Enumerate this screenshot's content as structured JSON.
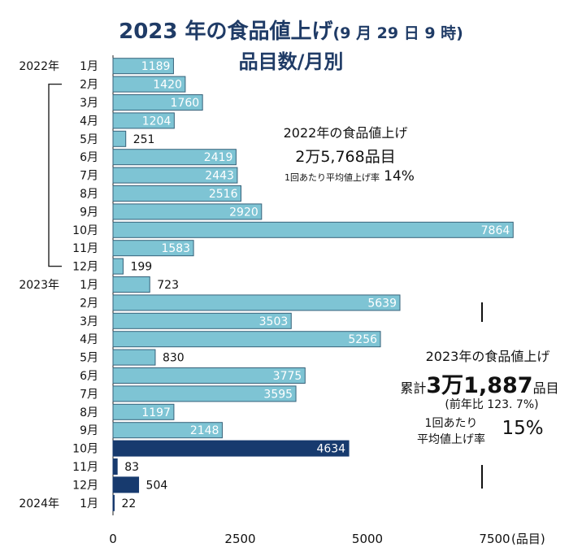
{
  "title": {
    "main": "2023 年の食品値上げ",
    "sub": "(9 月 29 日 9 時)",
    "line2": "品目数/月別"
  },
  "notes": {
    "y2022_head": "2022年の食品値上げ",
    "y2022_total": "2万5,768品目",
    "y2022_rate_label": "1回あたり平均値上げ率",
    "y2022_rate_value": "14%",
    "y2023_head": "2023年の食品値上げ",
    "y2023_total_prefix": "累計",
    "y2023_total_number": "3万1,887",
    "y2023_total_suffix": "品目",
    "y2023_yoy": "(前年比 123. 7%)",
    "y2023_rate_label1": "1回あたり",
    "y2023_rate_label2": "平均値上げ率",
    "y2023_rate_value": "15%"
  },
  "chart_data": {
    "type": "bar",
    "orientation": "horizontal",
    "title": "2023 年の食品値上げ(9 月 29 日 9 時) 品目数/月別",
    "xlabel": "(品目)",
    "xlim": [
      0,
      9000
    ],
    "xticks": [
      0,
      2500,
      5000,
      7500
    ],
    "xtick_labels": [
      "0",
      "2500",
      "5000",
      "7500"
    ],
    "unit_label": "(品目)",
    "categories": [
      {
        "year": "2022年",
        "month": "1月"
      },
      {
        "year": "",
        "month": "2月"
      },
      {
        "year": "",
        "month": "3月"
      },
      {
        "year": "",
        "month": "4月"
      },
      {
        "year": "",
        "month": "5月"
      },
      {
        "year": "",
        "month": "6月"
      },
      {
        "year": "",
        "month": "7月"
      },
      {
        "year": "",
        "month": "8月"
      },
      {
        "year": "",
        "month": "9月"
      },
      {
        "year": "",
        "month": "10月"
      },
      {
        "year": "",
        "month": "11月"
      },
      {
        "year": "",
        "month": "12月"
      },
      {
        "year": "2023年",
        "month": "1月"
      },
      {
        "year": "",
        "month": "2月"
      },
      {
        "year": "",
        "month": "3月"
      },
      {
        "year": "",
        "month": "4月"
      },
      {
        "year": "",
        "month": "5月"
      },
      {
        "year": "",
        "month": "6月"
      },
      {
        "year": "",
        "month": "7月"
      },
      {
        "year": "",
        "month": "8月"
      },
      {
        "year": "",
        "month": "9月"
      },
      {
        "year": "",
        "month": "10月"
      },
      {
        "year": "",
        "month": "11月"
      },
      {
        "year": "",
        "month": "12月"
      },
      {
        "year": "2024年",
        "month": "1月"
      }
    ],
    "values": [
      1189,
      1420,
      1760,
      1204,
      251,
      2419,
      2443,
      2516,
      2920,
      7864,
      1583,
      199,
      723,
      5639,
      3503,
      5256,
      830,
      3775,
      3595,
      1197,
      2148,
      4634,
      83,
      504,
      22
    ],
    "value_labels": [
      "1189",
      "1420",
      "1760",
      "1204",
      "251",
      "2419",
      "2443",
      "2516",
      "2920",
      "7864",
      "1583",
      "199",
      "723",
      "5639",
      "3503",
      "5256",
      "830",
      "3775",
      "3595",
      "1197",
      "2148",
      "4634",
      "83",
      "504",
      "22"
    ],
    "bar_status": [
      "past",
      "past",
      "past",
      "past",
      "past",
      "past",
      "past",
      "past",
      "past",
      "past",
      "past",
      "past",
      "past",
      "past",
      "past",
      "past",
      "past",
      "past",
      "past",
      "past",
      "past",
      "future",
      "future",
      "future",
      "future"
    ],
    "colors": {
      "past": "#7ec4d4",
      "future": "#173a6e",
      "past_border": "#36627a"
    }
  }
}
